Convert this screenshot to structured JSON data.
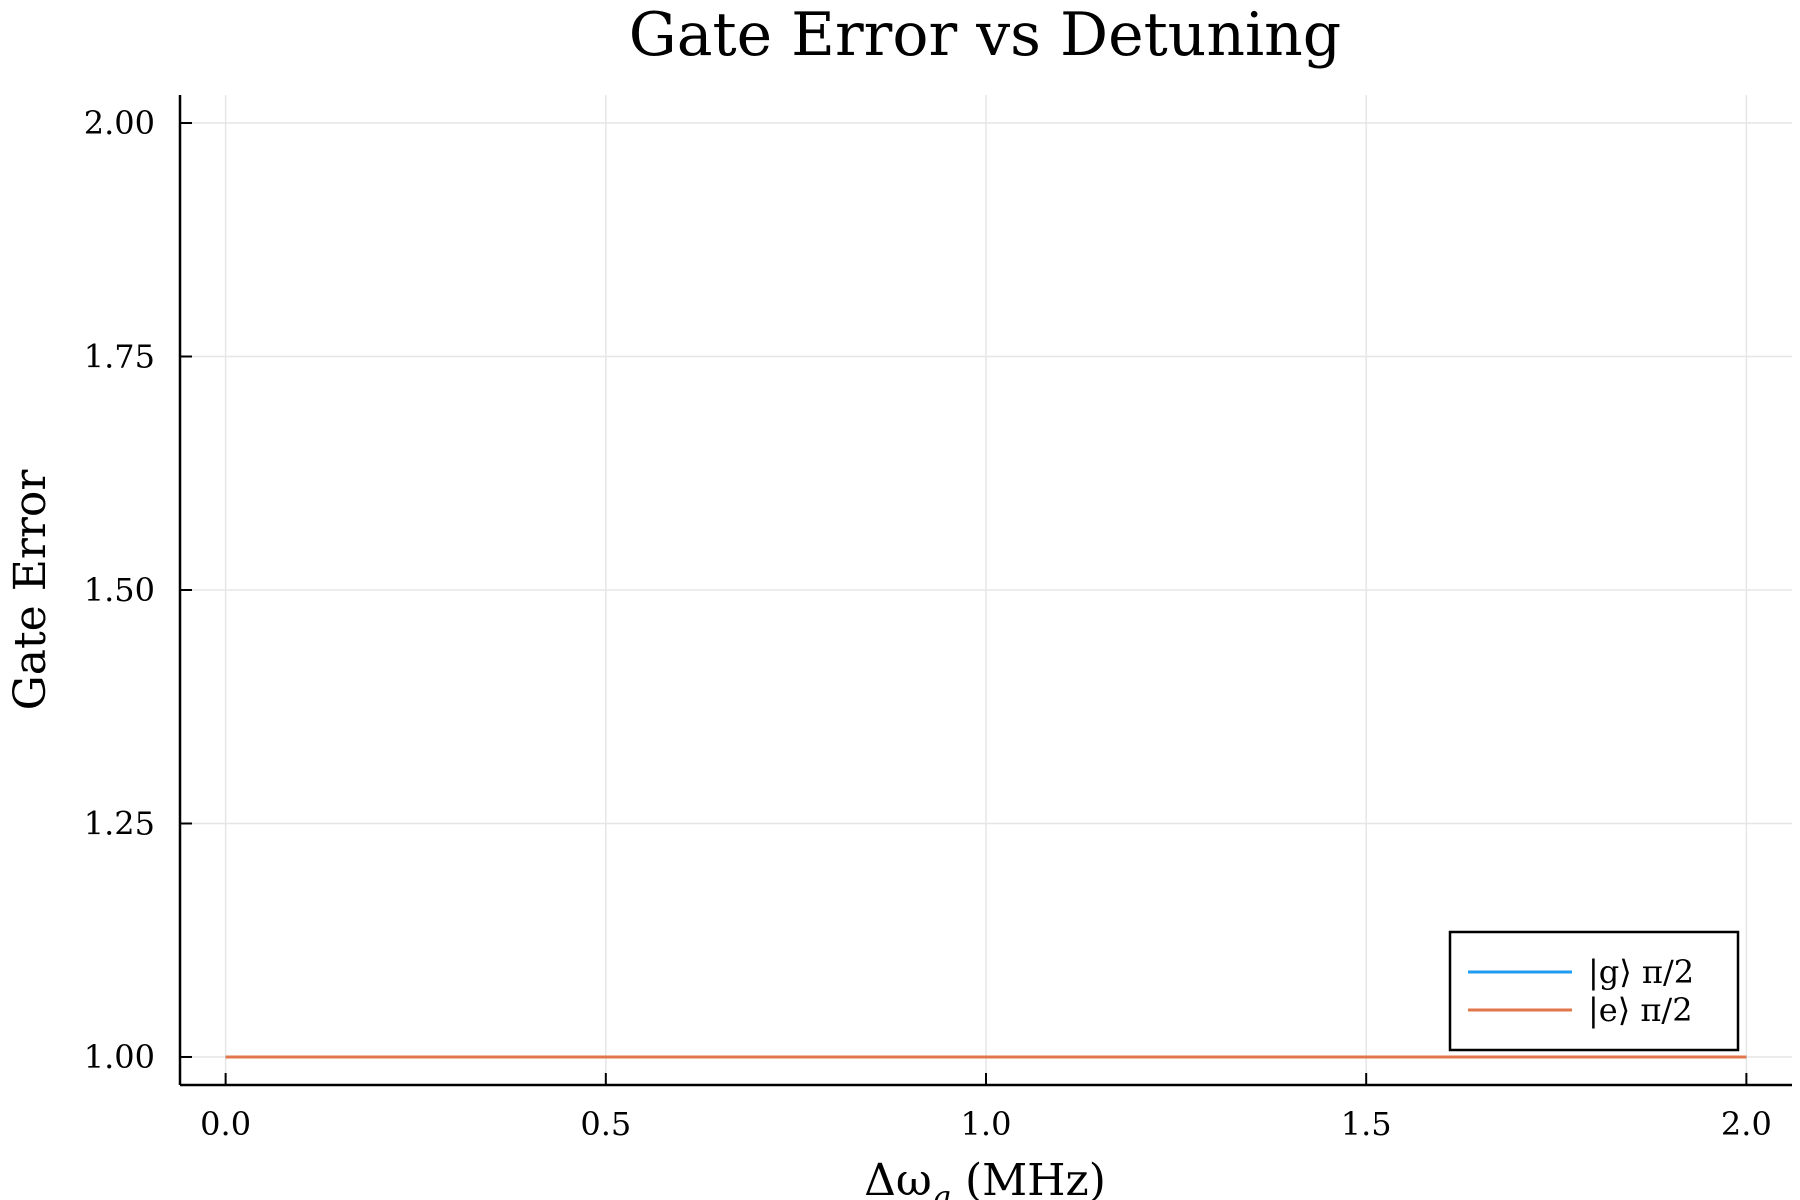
{
  "chart_data": {
    "type": "line",
    "title": "Gate Error vs Detuning",
    "xlabel": "Δω",
    "xlabel_sub": "q",
    "xlabel_unit": " (MHz)",
    "ylabel": "Gate Error",
    "xlim": [
      -0.06,
      2.06
    ],
    "ylim": [
      0.97,
      2.03
    ],
    "x_ticks": [
      0.0,
      0.5,
      1.0,
      1.5,
      2.0
    ],
    "x_tick_labels": [
      "0.0",
      "0.5",
      "1.0",
      "1.5",
      "2.0"
    ],
    "y_ticks": [
      1.0,
      1.25,
      1.5,
      1.75,
      2.0
    ],
    "y_tick_labels": [
      "1.00",
      "1.25",
      "1.50",
      "1.75",
      "2.00"
    ],
    "grid": true,
    "legend_position": "bottom-right",
    "series": [
      {
        "name": "|g⟩ π/2",
        "color": "#1f9bf0",
        "x": [
          0.0,
          2.0
        ],
        "y": [
          1.0,
          1.0
        ]
      },
      {
        "name": "|e⟩ π/2",
        "color": "#e0764a",
        "x": [
          0.0,
          2.0
        ],
        "y": [
          1.0,
          1.0
        ]
      }
    ]
  }
}
